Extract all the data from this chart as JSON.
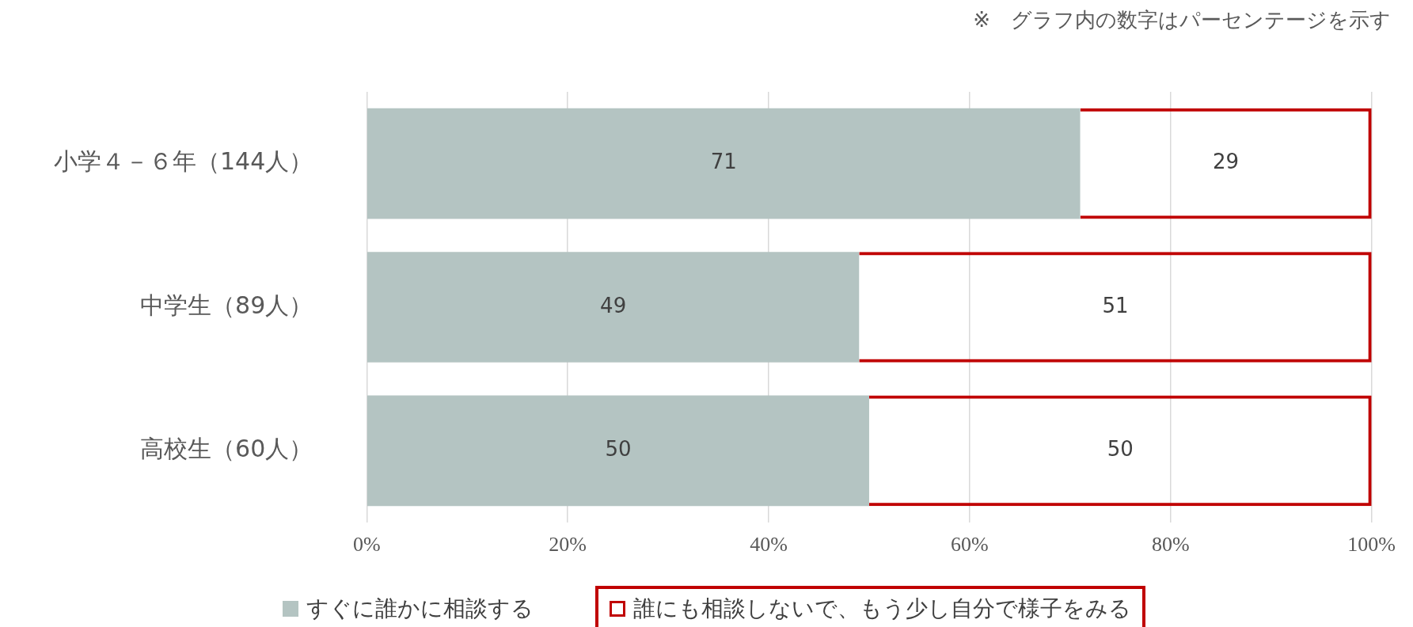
{
  "chart_data": {
    "type": "bar",
    "orientation": "horizontal",
    "stacked": true,
    "annotations": [
      "※　グラフ内の数字はパーセンテージを示す"
    ],
    "categories": [
      "小学４－６年（144人）",
      "中学生（89人）",
      "高校生（60人）"
    ],
    "series": [
      {
        "name": "すぐに誰かに相談する",
        "color": "#b4c4c2",
        "values": [
          71,
          49,
          50
        ]
      },
      {
        "name": "誰にも相談しないで、もう少し自分で様子をみる",
        "color": "#c00000",
        "values": [
          29,
          51,
          50
        ]
      }
    ],
    "xlim": [
      0,
      100
    ],
    "xticks": [
      {
        "value": 0,
        "label": "0%"
      },
      {
        "value": 20,
        "label": "20%"
      },
      {
        "value": 40,
        "label": "40%"
      },
      {
        "value": 60,
        "label": "60%"
      },
      {
        "value": 80,
        "label": "80%"
      },
      {
        "value": 100,
        "label": "100%"
      }
    ],
    "grid": "x",
    "legend": "bottom",
    "data_labels": true
  }
}
